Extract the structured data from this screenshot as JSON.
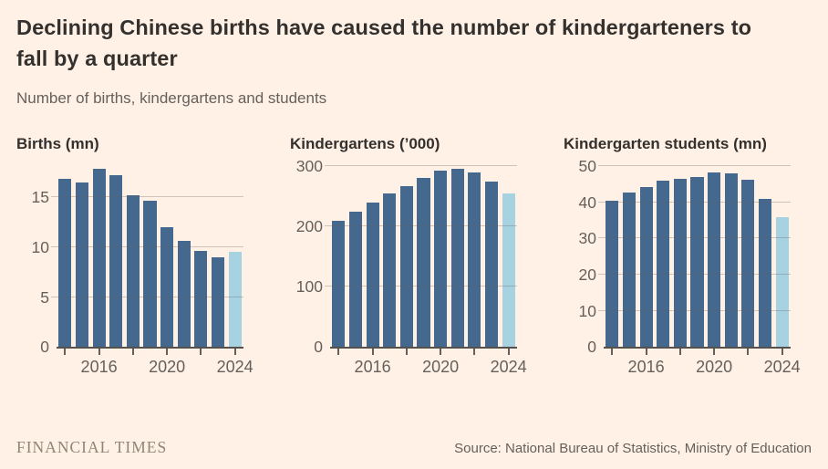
{
  "header": {
    "title": "Declining Chinese births have caused the number of kindergarteners to fall by a quarter",
    "subtitle": "Number of births, kindergartens and students"
  },
  "chart_data": [
    {
      "type": "bar",
      "title": "Births (mn)",
      "categories": [
        2014,
        2015,
        2016,
        2017,
        2018,
        2019,
        2020,
        2021,
        2022,
        2023,
        2024
      ],
      "values": [
        16.9,
        16.5,
        17.9,
        17.2,
        15.2,
        14.7,
        12.0,
        10.6,
        9.6,
        9.0,
        9.5
      ],
      "highlight_last": true,
      "yticks": [
        0,
        5,
        10,
        15
      ],
      "ylim": [
        0,
        18.5
      ],
      "xticks": [
        2014,
        2016,
        2018,
        2020,
        2022,
        2024
      ],
      "xtick_labels": [
        "2016",
        "2020",
        "2024"
      ],
      "grid": true,
      "legend": "none"
    },
    {
      "type": "bar",
      "title": "Kindergartens (’000)",
      "categories": [
        2014,
        2015,
        2016,
        2017,
        2018,
        2019,
        2020,
        2021,
        2022,
        2023,
        2024
      ],
      "values": [
        210,
        224,
        240,
        255,
        267,
        281,
        292,
        295,
        289,
        274,
        254
      ],
      "highlight_last": true,
      "yticks": [
        0,
        100,
        200,
        300
      ],
      "ylim": [
        0,
        306
      ],
      "xticks": [
        2014,
        2016,
        2018,
        2020,
        2022,
        2024
      ],
      "xtick_labels": [
        "2016",
        "2020",
        "2024"
      ],
      "grid": true,
      "legend": "none"
    },
    {
      "type": "bar",
      "title": "Kindergarten students (mn)",
      "categories": [
        2014,
        2015,
        2016,
        2017,
        2018,
        2019,
        2020,
        2021,
        2022,
        2023,
        2024
      ],
      "values": [
        40.5,
        42.7,
        44.1,
        46.0,
        46.6,
        47.1,
        48.2,
        48.1,
        46.3,
        40.9,
        35.8
      ],
      "highlight_last": true,
      "yticks": [
        0,
        10,
        20,
        30,
        40,
        50
      ],
      "ylim": [
        0,
        51
      ],
      "xticks": [
        2014,
        2016,
        2018,
        2020,
        2022,
        2024
      ],
      "xtick_labels": [
        "2016",
        "2020",
        "2024"
      ],
      "grid": true,
      "legend": "none"
    }
  ],
  "footer": {
    "brand": "FINANCIAL TIMES",
    "source": "Source: National Bureau of Statistics, Ministry of Education"
  },
  "colors": {
    "background": "#FFF1E5",
    "title_text": "#33302E",
    "muted_text": "#66605C",
    "bar": "#45688F",
    "bar_highlight": "#A7D2E2",
    "baseline": "#57514D",
    "brand_text": "#8E8676"
  }
}
